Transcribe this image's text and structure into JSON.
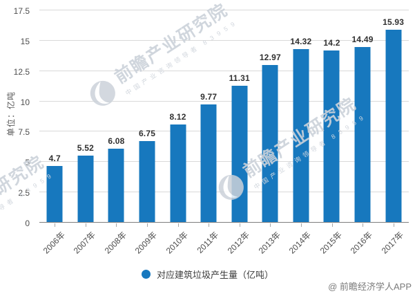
{
  "chart_data": {
    "type": "bar",
    "title": "",
    "categories": [
      "2006年",
      "2007年",
      "2008年",
      "2009年",
      "2010年",
      "2011年",
      "2012年",
      "2013年",
      "2014年",
      "2015年",
      "2016年",
      "2017年"
    ],
    "values": [
      4.7,
      5.52,
      6.08,
      6.75,
      8.12,
      9.77,
      11.31,
      12.97,
      14.32,
      14.2,
      14.49,
      15.93
    ],
    "ylabel": "单位：亿吨",
    "ylim": [
      0,
      17.5
    ],
    "yticks": [
      0,
      2.5,
      5,
      7.5,
      10,
      12.5,
      15,
      17.5
    ],
    "grid": true,
    "bar_color": "#1778be",
    "legend": {
      "label": "对应建筑垃圾产生量（亿吨）",
      "position": "bottom",
      "marker_color": "#1778be"
    }
  },
  "watermark": {
    "text": "前瞻产业研究院",
    "subtext": "中国产业咨询领导者",
    "digits": "83959",
    "color": "#ccd2da"
  },
  "credit": "@ 前瞻经济学人APP"
}
